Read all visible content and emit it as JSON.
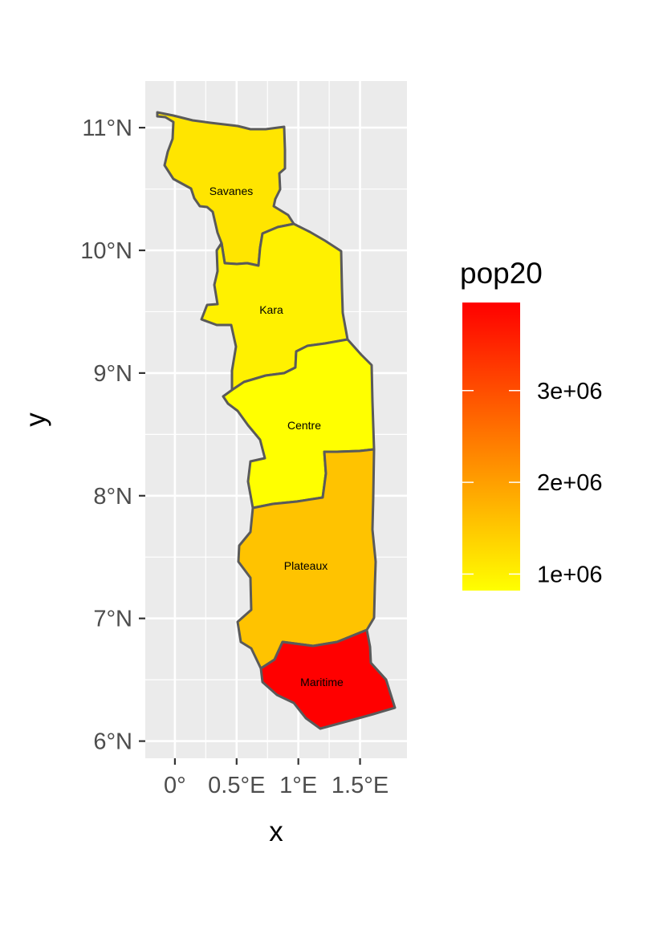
{
  "chart_data": {
    "type": "choropleth",
    "xlabel": "x",
    "ylabel": "y",
    "x_ticks": [
      {
        "value": 0,
        "label": "0°"
      },
      {
        "value": 0.5,
        "label": "0.5°E"
      },
      {
        "value": 1,
        "label": "1°E"
      },
      {
        "value": 1.5,
        "label": "1.5°E"
      }
    ],
    "y_ticks": [
      {
        "value": 6,
        "label": "6°N"
      },
      {
        "value": 7,
        "label": "7°N"
      },
      {
        "value": 8,
        "label": "8°N"
      },
      {
        "value": 9,
        "label": "9°N"
      },
      {
        "value": 10,
        "label": "10°N"
      },
      {
        "value": 11,
        "label": "11°N"
      }
    ],
    "xlim": [
      -0.24,
      1.88
    ],
    "ylim": [
      5.86,
      11.38
    ],
    "grid": true,
    "panel_background": "#ebebeb",
    "legend": {
      "title": "pop20",
      "position": "right",
      "low_color": "#ffff00",
      "high_color": "#ff0000",
      "range": [
        820000,
        3960000
      ],
      "breaks": [
        {
          "value": 1000000,
          "label": "1e+06"
        },
        {
          "value": 2000000,
          "label": "2e+06"
        },
        {
          "value": 3000000,
          "label": "3e+06"
        }
      ]
    },
    "regions": [
      {
        "name": "Savanes",
        "value": 1100000,
        "color": "#ffe500"
      },
      {
        "name": "Kara",
        "value": 960000,
        "color": "#fff100"
      },
      {
        "name": "Centre",
        "value": 830000,
        "color": "#ffff00"
      },
      {
        "name": "Plateaux",
        "value": 1750000,
        "color": "#ffc300"
      },
      {
        "name": "Maritime",
        "value": 3960000,
        "color": "#ff0000"
      }
    ]
  }
}
